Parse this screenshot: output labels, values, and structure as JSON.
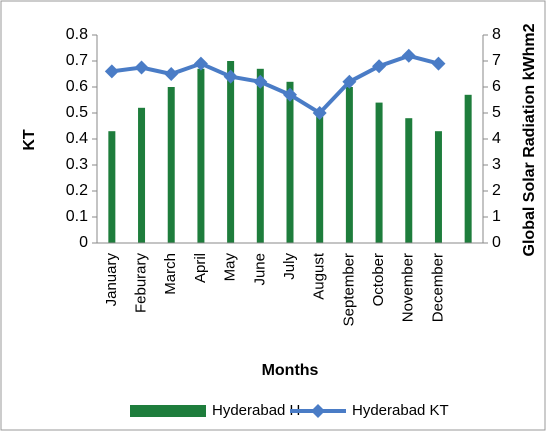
{
  "chart_data": {
    "type": "bar",
    "x_label": "Months",
    "y_label": "KT",
    "y2_label": "Global Solar Radiation kWhm2",
    "categories": [
      "January",
      "Feburary",
      "March",
      "April",
      "May",
      "June",
      "July",
      "August",
      "September",
      "October",
      "November",
      "December",
      null
    ],
    "series": [
      {
        "name": "Hyderabad H",
        "type": "bar",
        "color": "#1e7d3c",
        "values": [
          0.43,
          0.52,
          0.6,
          0.67,
          0.7,
          0.67,
          0.62,
          0.49,
          0.6,
          0.54,
          0.48,
          0.43,
          0.57
        ]
      },
      {
        "name": "Hyderabad KT",
        "type": "line",
        "color": "#4a7cc6",
        "axis": "y2",
        "values": [
          6.6,
          6.75,
          6.5,
          6.9,
          6.4,
          6.2,
          5.7,
          5.0,
          6.2,
          6.8,
          7.2,
          6.9,
          null
        ]
      }
    ],
    "ylim": [
      0,
      0.8
    ],
    "yticks": [
      0,
      0.1,
      0.2,
      0.3,
      0.4,
      0.5,
      0.6,
      0.7,
      0.8
    ],
    "y2lim": [
      0,
      8
    ],
    "y2ticks": [
      0,
      1,
      2,
      3,
      4,
      5,
      6,
      7,
      8
    ],
    "grid": false,
    "legend": "bottom"
  }
}
